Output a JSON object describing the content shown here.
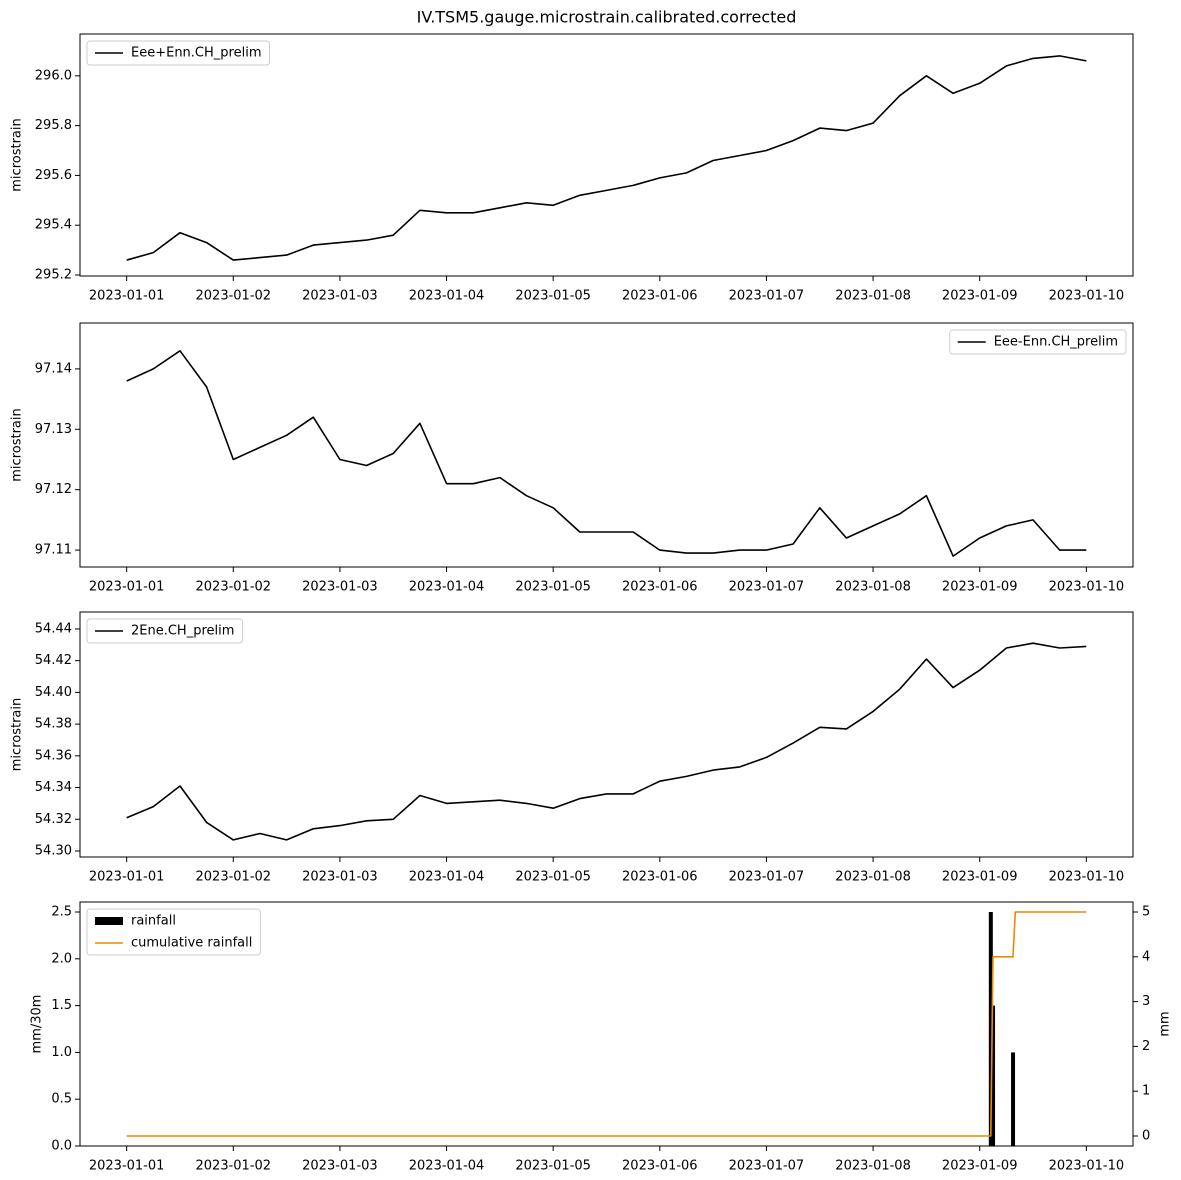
{
  "chart_data": [
    {
      "type": "line",
      "title": "IV.TSM5.gauge.microstrain.calibrated.corrected",
      "ylabel": "microstrain",
      "legend": "upper left",
      "x": [
        "2023-01-01 00:00",
        "2023-01-01 06:00",
        "2023-01-01 12:00",
        "2023-01-01 18:00",
        "2023-01-02 00:00",
        "2023-01-02 06:00",
        "2023-01-02 12:00",
        "2023-01-02 18:00",
        "2023-01-03 00:00",
        "2023-01-03 06:00",
        "2023-01-03 12:00",
        "2023-01-03 18:00",
        "2023-01-04 00:00",
        "2023-01-04 06:00",
        "2023-01-04 12:00",
        "2023-01-04 18:00",
        "2023-01-05 00:00",
        "2023-01-05 06:00",
        "2023-01-05 12:00",
        "2023-01-05 18:00",
        "2023-01-06 00:00",
        "2023-01-06 06:00",
        "2023-01-06 12:00",
        "2023-01-06 18:00",
        "2023-01-07 00:00",
        "2023-01-07 06:00",
        "2023-01-07 12:00",
        "2023-01-07 18:00",
        "2023-01-08 00:00",
        "2023-01-08 06:00",
        "2023-01-08 12:00",
        "2023-01-08 18:00",
        "2023-01-09 00:00",
        "2023-01-09 06:00",
        "2023-01-09 12:00",
        "2023-01-09 18:00",
        "2023-01-10 00:00"
      ],
      "series": [
        {
          "name": "Eee+Enn.CH_prelim",
          "color": "#000000",
          "values": [
            295.26,
            295.29,
            295.37,
            295.33,
            295.26,
            295.27,
            295.28,
            295.32,
            295.33,
            295.34,
            295.36,
            295.46,
            295.45,
            295.45,
            295.47,
            295.49,
            295.48,
            295.52,
            295.54,
            295.56,
            295.59,
            295.61,
            295.66,
            295.68,
            295.7,
            295.74,
            295.79,
            295.78,
            295.81,
            295.92,
            296.0,
            295.93,
            295.97,
            296.04,
            296.07,
            296.08,
            296.06
          ]
        }
      ],
      "xlim": [
        "2022-12-31 13:30",
        "2023-01-10 10:30"
      ],
      "xticks": [
        "2023-01-01",
        "2023-01-02",
        "2023-01-03",
        "2023-01-04",
        "2023-01-05",
        "2023-01-06",
        "2023-01-07",
        "2023-01-08",
        "2023-01-09",
        "2023-01-10"
      ],
      "ylim": [
        295.196,
        296.168
      ],
      "yticks": [
        295.2,
        295.4,
        295.6,
        295.8,
        {
          "value": 296,
          "label": "296.0"
        }
      ]
    },
    {
      "type": "line",
      "ylabel": "microstrain",
      "legend": "upper right",
      "x": [
        "2023-01-01 00:00",
        "2023-01-01 06:00",
        "2023-01-01 12:00",
        "2023-01-01 18:00",
        "2023-01-02 00:00",
        "2023-01-02 06:00",
        "2023-01-02 12:00",
        "2023-01-02 18:00",
        "2023-01-03 00:00",
        "2023-01-03 06:00",
        "2023-01-03 12:00",
        "2023-01-03 18:00",
        "2023-01-04 00:00",
        "2023-01-04 06:00",
        "2023-01-04 12:00",
        "2023-01-04 18:00",
        "2023-01-05 00:00",
        "2023-01-05 06:00",
        "2023-01-05 12:00",
        "2023-01-05 18:00",
        "2023-01-06 00:00",
        "2023-01-06 06:00",
        "2023-01-06 12:00",
        "2023-01-06 18:00",
        "2023-01-07 00:00",
        "2023-01-07 06:00",
        "2023-01-07 12:00",
        "2023-01-07 18:00",
        "2023-01-08 00:00",
        "2023-01-08 06:00",
        "2023-01-08 12:00",
        "2023-01-08 18:00",
        "2023-01-09 00:00",
        "2023-01-09 06:00",
        "2023-01-09 12:00",
        "2023-01-09 18:00",
        "2023-01-10 00:00"
      ],
      "series": [
        {
          "name": "Eee-Enn.CH_prelim",
          "color": "#000000",
          "values": [
            97.138,
            97.14,
            97.143,
            97.137,
            97.125,
            97.127,
            97.129,
            97.132,
            97.125,
            97.124,
            97.126,
            97.131,
            97.121,
            97.121,
            97.122,
            97.119,
            97.117,
            97.113,
            97.113,
            97.113,
            97.11,
            97.1095,
            97.1095,
            97.11,
            97.11,
            97.111,
            97.117,
            97.112,
            97.114,
            97.116,
            97.119,
            97.109,
            97.112,
            97.114,
            97.115,
            97.11,
            97.11
          ]
        }
      ],
      "xlim": [
        "2022-12-31 13:30",
        "2023-01-10 10:30"
      ],
      "xticks": [
        "2023-01-01",
        "2023-01-02",
        "2023-01-03",
        "2023-01-04",
        "2023-01-05",
        "2023-01-06",
        "2023-01-07",
        "2023-01-08",
        "2023-01-09",
        "2023-01-10"
      ],
      "ylim": [
        97.1072,
        97.1476
      ],
      "yticks": [
        97.11,
        97.12,
        97.13,
        97.14
      ]
    },
    {
      "type": "line",
      "ylabel": "microstrain",
      "legend": "upper left",
      "x": [
        "2023-01-01 00:00",
        "2023-01-01 06:00",
        "2023-01-01 12:00",
        "2023-01-01 18:00",
        "2023-01-02 00:00",
        "2023-01-02 06:00",
        "2023-01-02 12:00",
        "2023-01-02 18:00",
        "2023-01-03 00:00",
        "2023-01-03 06:00",
        "2023-01-03 12:00",
        "2023-01-03 18:00",
        "2023-01-04 00:00",
        "2023-01-04 06:00",
        "2023-01-04 12:00",
        "2023-01-04 18:00",
        "2023-01-05 00:00",
        "2023-01-05 06:00",
        "2023-01-05 12:00",
        "2023-01-05 18:00",
        "2023-01-06 00:00",
        "2023-01-06 06:00",
        "2023-01-06 12:00",
        "2023-01-06 18:00",
        "2023-01-07 00:00",
        "2023-01-07 06:00",
        "2023-01-07 12:00",
        "2023-01-07 18:00",
        "2023-01-08 00:00",
        "2023-01-08 06:00",
        "2023-01-08 12:00",
        "2023-01-08 18:00",
        "2023-01-09 00:00",
        "2023-01-09 06:00",
        "2023-01-09 12:00",
        "2023-01-09 18:00",
        "2023-01-10 00:00"
      ],
      "series": [
        {
          "name": "2Ene.CH_prelim",
          "color": "#000000",
          "values": [
            54.321,
            54.328,
            54.341,
            54.318,
            54.307,
            54.311,
            54.307,
            54.314,
            54.316,
            54.319,
            54.32,
            54.335,
            54.33,
            54.331,
            54.332,
            54.33,
            54.327,
            54.333,
            54.336,
            54.336,
            54.344,
            54.347,
            54.351,
            54.353,
            54.359,
            54.368,
            54.378,
            54.377,
            54.388,
            54.402,
            54.421,
            54.403,
            54.414,
            54.428,
            54.431,
            54.428,
            54.429
          ]
        }
      ],
      "xlim": [
        "2022-12-31 13:30",
        "2023-01-10 10:30"
      ],
      "xticks": [
        "2023-01-01",
        "2023-01-02",
        "2023-01-03",
        "2023-01-04",
        "2023-01-05",
        "2023-01-06",
        "2023-01-07",
        "2023-01-08",
        "2023-01-09",
        "2023-01-10"
      ],
      "ylim": [
        54.2962,
        54.4507
      ],
      "yticks": [
        {
          "value": 54.3,
          "label": "54.30"
        },
        54.32,
        54.34,
        54.36,
        54.38,
        {
          "value": 54.4,
          "label": "54.40"
        },
        54.42,
        54.44
      ]
    },
    {
      "type": "combo",
      "ylabel": "mm/30m",
      "y2label": "mm",
      "legend": "upper left",
      "series": [
        {
          "name": "rainfall",
          "type": "bar",
          "color": "#000000",
          "x": [
            "2023-01-09 02:30",
            "2023-01-09 03:00",
            "2023-01-09 07:30"
          ],
          "values": [
            2.5,
            1.5,
            1.0
          ]
        },
        {
          "name": "cumulative rainfall",
          "type": "line",
          "axis": "y2",
          "color": "#ee8800",
          "x": [
            "2023-01-01 00:00",
            "2023-01-09 02:30",
            "2023-01-09 03:00",
            "2023-01-09 07:30",
            "2023-01-09 08:00",
            "2023-01-10 00:00"
          ],
          "values": [
            0,
            0,
            4,
            4,
            5,
            5
          ]
        }
      ],
      "xlim": [
        "2022-12-31 13:30",
        "2023-01-10 10:30"
      ],
      "xticks": [
        "2023-01-01",
        "2023-01-02",
        "2023-01-03",
        "2023-01-04",
        "2023-01-05",
        "2023-01-06",
        "2023-01-07",
        "2023-01-08",
        "2023-01-09",
        "2023-01-10"
      ],
      "ylim": [
        0,
        2.607
      ],
      "yticks": [
        {
          "value": 0,
          "label": "0.0"
        },
        0.5,
        {
          "value": 1,
          "label": "1.0"
        },
        1.5,
        {
          "value": 2,
          "label": "2.0"
        },
        2.5
      ],
      "y2lim": [
        -0.223,
        5.223
      ],
      "y2ticks": [
        0,
        1,
        2,
        3,
        4,
        5
      ]
    }
  ]
}
